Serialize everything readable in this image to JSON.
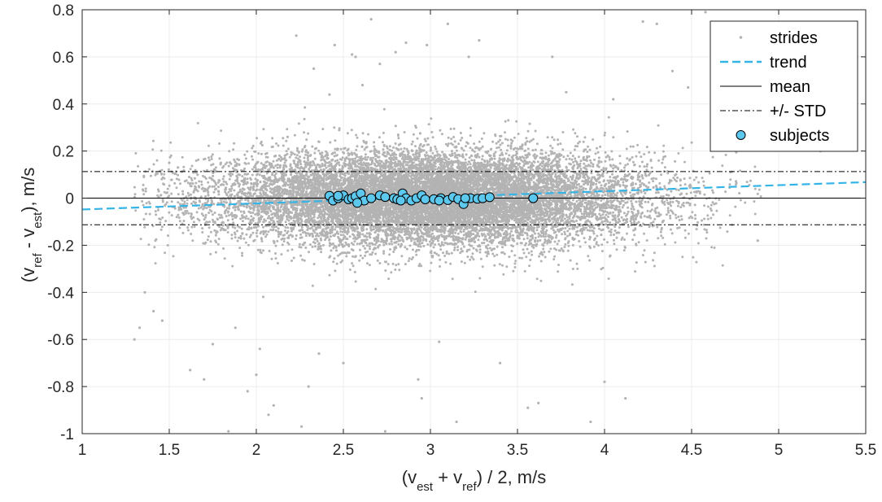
{
  "chart_data": {
    "type": "scatter",
    "xlabel": {
      "pre": "(v",
      "sub1": "est",
      "mid": " + v",
      "sub2": "ref",
      "post": ") / 2, m/s"
    },
    "ylabel": {
      "pre": "(v",
      "sub1": "ref",
      "mid": " - v",
      "sub2": "est",
      "post": "), m/s"
    },
    "xlim": [
      1,
      5.5
    ],
    "ylim": [
      -1,
      0.8
    ],
    "xticks": [
      "1",
      "1.5",
      "2",
      "2.5",
      "3",
      "3.5",
      "4",
      "4.5",
      "5",
      "5.5"
    ],
    "yticks": [
      "-1",
      "-0.8",
      "-0.6",
      "-0.4",
      "-0.2",
      "0",
      "0.2",
      "0.4",
      "0.6",
      "0.8"
    ],
    "grid": true,
    "legend_position": "top-right",
    "legend": [
      "strides",
      "trend",
      "mean",
      "+/- STD",
      "subjects"
    ],
    "colors": {
      "strides": "#b3b3b3",
      "trend": "#35b4e6",
      "subjects_fill": "#5cc8ee",
      "subjects_edge": "#000000",
      "mean": "#000000",
      "std": "#000000"
    },
    "mean": 0,
    "std": 0.113,
    "trend": {
      "x": [
        1,
        5.5
      ],
      "y": [
        -0.048,
        0.068
      ]
    },
    "strides_cloud": {
      "x_mean": 3.0,
      "x_sd": 0.62,
      "y_sd": 0.1,
      "count": 14000
    },
    "strides_outliers": {
      "x": [
        1.3,
        1.33,
        1.36,
        1.41,
        1.46,
        1.5,
        1.55,
        1.62,
        1.7,
        1.75,
        1.84,
        1.88,
        1.95,
        2.0,
        2.02,
        2.07,
        2.1,
        2.18,
        2.23,
        2.26,
        2.3,
        2.33,
        2.36,
        2.42,
        2.45,
        2.5,
        2.57,
        2.61,
        2.66,
        2.71,
        2.74,
        2.8,
        2.86,
        2.93,
        2.98,
        3.05,
        3.1,
        3.22,
        3.28,
        3.4,
        3.56,
        3.62,
        3.78,
        3.92,
        4.05,
        4.12,
        4.22,
        4.3,
        4.39,
        4.48,
        4.58,
        4.62,
        4.72,
        4.86,
        4.88,
        5.0,
        5.24,
        3.15,
        2.95,
        2.55,
        3.7,
        4.0
      ],
      "y": [
        -0.6,
        -0.55,
        -0.4,
        -0.48,
        -0.52,
        0.15,
        0.13,
        -0.73,
        -0.77,
        -0.62,
        -0.99,
        -0.55,
        -0.82,
        -0.75,
        -0.64,
        -0.92,
        -0.88,
        0.26,
        0.69,
        -0.97,
        -0.8,
        0.55,
        -0.66,
        0.44,
        0.65,
        -0.7,
        0.6,
        0.48,
        0.76,
        0.57,
        -0.99,
        0.62,
        0.66,
        -0.77,
        0.65,
        -0.61,
        0.74,
        0.6,
        0.67,
        -0.7,
        -0.89,
        -0.87,
        0.45,
        -0.95,
        0.42,
        -0.85,
        0.75,
        0.74,
        0.54,
        0.47,
        0.79,
        0.68,
        0.4,
        0.3,
        -0.18,
        0.29,
        0.2,
        -0.95,
        -0.85,
        0.61,
        0.6,
        -0.78
      ]
    },
    "subjects": {
      "x": [
        2.42,
        2.44,
        2.47,
        2.5,
        2.53,
        2.55,
        2.57,
        2.6,
        2.62,
        2.66,
        2.71,
        2.74,
        2.79,
        2.81,
        2.84,
        2.86,
        2.89,
        2.92,
        2.95,
        2.97,
        3.02,
        3.06,
        3.1,
        3.13,
        3.16,
        3.19,
        3.23,
        3.27,
        3.3,
        3.34,
        3.59,
        2.47,
        2.58,
        2.83,
        3.05,
        3.2
      ],
      "y": [
        0.01,
        -0.01,
        0.0,
        0.012,
        -0.005,
        0.0,
        0.008,
        0.02,
        -0.01,
        0.0,
        0.012,
        0.005,
        0.0,
        -0.005,
        0.02,
        0.0,
        -0.01,
        0.0,
        0.012,
        -0.005,
        -0.004,
        0.0,
        -0.008,
        0.005,
        -0.004,
        -0.025,
        0.0,
        -0.003,
        0.0,
        0.004,
        0.0,
        0.01,
        -0.02,
        -0.01,
        -0.01,
        0.0
      ]
    }
  }
}
